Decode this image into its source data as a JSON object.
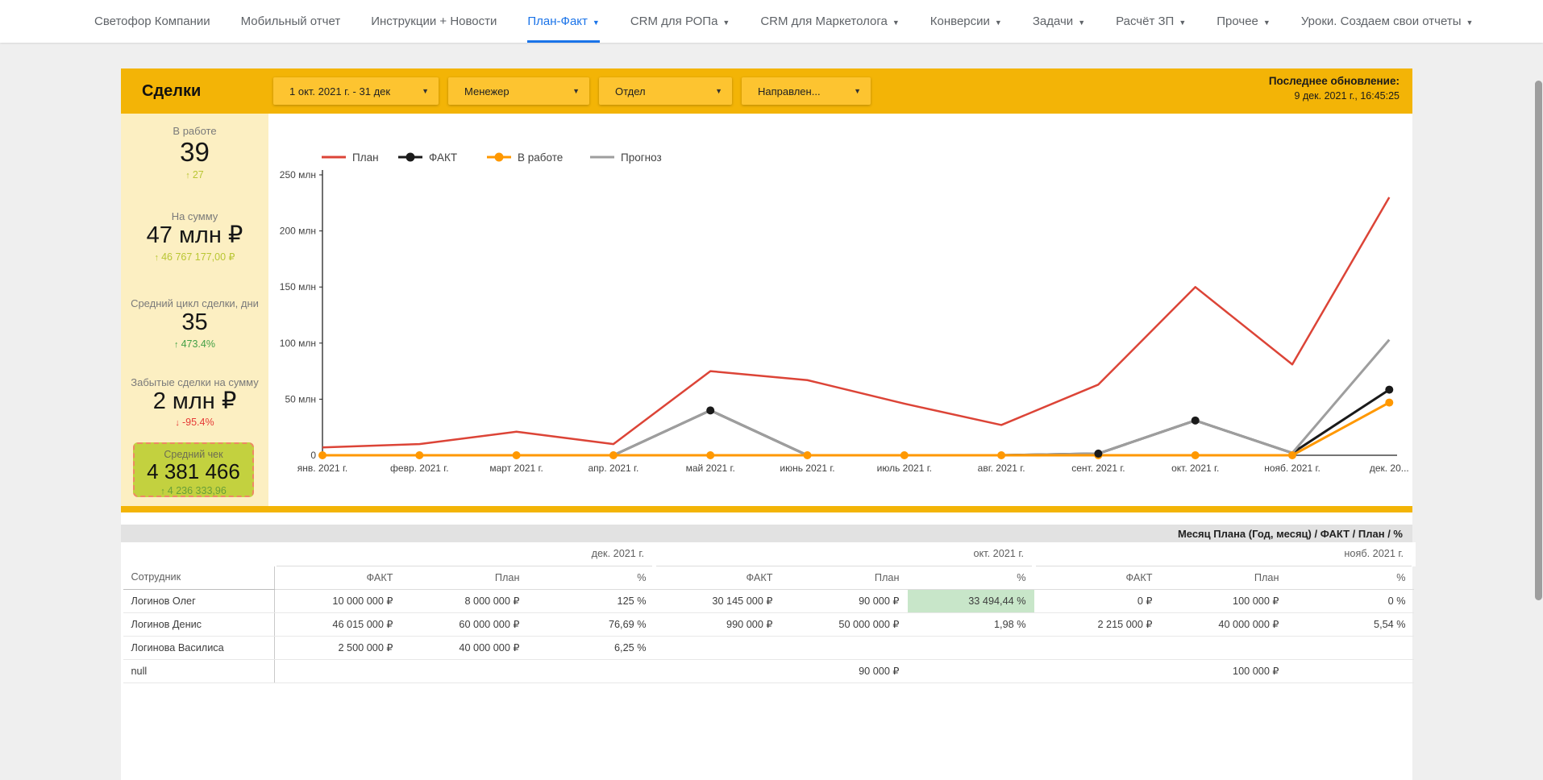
{
  "nav": {
    "items": [
      {
        "label": "Светофор Компании",
        "caret": false,
        "active": false
      },
      {
        "label": "Мобильный отчет",
        "caret": false,
        "active": false
      },
      {
        "label": "Инструкции + Новости",
        "caret": false,
        "active": false
      },
      {
        "label": "План-Факт",
        "caret": true,
        "active": true
      },
      {
        "label": "CRM для РОПа",
        "caret": true,
        "active": false
      },
      {
        "label": "CRM для Маркетолога",
        "caret": true,
        "active": false
      },
      {
        "label": "Конверсии",
        "caret": true,
        "active": false
      },
      {
        "label": "Задачи",
        "caret": true,
        "active": false
      },
      {
        "label": "Расчёт ЗП",
        "caret": true,
        "active": false
      },
      {
        "label": "Прочее",
        "caret": true,
        "active": false
      },
      {
        "label": "Уроки. Создаем свои отчеты",
        "caret": true,
        "active": false
      }
    ]
  },
  "header": {
    "title": "Сделки",
    "filters": [
      {
        "label": "1 окт. 2021 г. - 31 дек"
      },
      {
        "label": "Менежер"
      },
      {
        "label": "Отдел"
      },
      {
        "label": "Направлен..."
      }
    ],
    "last_update_label": "Последнее обновление:",
    "last_update_value": "9 дек. 2021 г., 16:45:25"
  },
  "kpis": [
    {
      "label": "В работе",
      "value": "39",
      "delta": "27",
      "direction": "up",
      "delta_color": "#b9c634"
    },
    {
      "label": "На сумму",
      "value": "47 млн ₽",
      "delta": "46 767 177,00 ₽",
      "direction": "up",
      "delta_color": "#b9c634"
    },
    {
      "label": "Средний цикл сделки, дни",
      "value": "35",
      "delta": "473.4%",
      "direction": "up",
      "delta_color": "#43a047"
    },
    {
      "label": "Забытые сделки на сумму",
      "value": "2 млн ₽",
      "delta": "-95.4%",
      "direction": "down",
      "delta_color": "#e53935"
    }
  ],
  "avg_check": {
    "label": "Средний чек",
    "value": "4 381 466",
    "delta": "4 236 333,96",
    "direction": "up"
  },
  "chart_data": {
    "type": "line",
    "title": "",
    "unit": "млн ₽",
    "x_categories": [
      "янв. 2021 г.",
      "февр. 2021 г.",
      "март 2021 г.",
      "апр. 2021 г.",
      "май 2021 г.",
      "июнь 2021 г.",
      "июль 2021 г.",
      "авг. 2021 г.",
      "сент. 2021 г.",
      "окт. 2021 г.",
      "нояб. 2021 г.",
      "дек. 20..."
    ],
    "y_ticks": [
      "250 млн",
      "200 млн",
      "150 млн",
      "100 млн",
      "50 млн",
      "0"
    ],
    "y_tick_values": [
      250,
      200,
      150,
      100,
      50,
      0
    ],
    "ylim": [
      0,
      250
    ],
    "grid": false,
    "legend_position": "top",
    "series": [
      {
        "name": "План",
        "color": "#DC4437",
        "line_width": 2.5,
        "values": [
          7,
          10,
          21,
          10,
          75,
          67,
          46,
          27,
          63,
          150,
          81,
          230
        ],
        "marker_indices": []
      },
      {
        "name": "ФАКТ",
        "color": "#1A1A1A",
        "line_width": 3,
        "values": [
          0,
          0,
          0,
          0,
          40,
          0,
          0,
          0,
          1.5,
          31,
          2,
          58.5
        ],
        "marker_indices": [
          4,
          8,
          9,
          11
        ]
      },
      {
        "name": "В работе",
        "color": "#FF9800",
        "line_width": 3,
        "values": [
          0,
          0,
          0,
          0,
          0,
          0,
          0,
          0,
          0,
          0,
          0,
          47
        ],
        "marker_indices": [
          0,
          1,
          2,
          3,
          4,
          5,
          6,
          7,
          8,
          9,
          10,
          11
        ]
      },
      {
        "name": "Прогноз",
        "color": "#9E9E9E",
        "line_width": 3,
        "values": [
          0,
          0,
          0,
          0,
          40,
          0,
          0,
          0,
          1.5,
          31,
          2,
          103
        ],
        "marker_indices": []
      }
    ]
  },
  "table": {
    "summary_header": "Месяц Плана (Год, месяц) / ФАКТ / План / %",
    "row_dimension": "Сотрудник",
    "groups": [
      {
        "label": "дек. 2021 г.",
        "columns": [
          "ФАКТ",
          "План",
          "%"
        ]
      },
      {
        "label": "окт. 2021 г.",
        "columns": [
          "ФАКТ",
          "План",
          "%"
        ]
      },
      {
        "label": "нояб. 2021 г.",
        "columns": [
          "ФАКТ",
          "План",
          "%"
        ]
      }
    ],
    "rows": [
      {
        "name": "Логинов Олег",
        "values": [
          "10 000 000 ₽",
          "8 000 000 ₽",
          "125 %",
          "30 145 000 ₽",
          "90 000 ₽",
          "33 494,44 %",
          "0 ₽",
          "100 000 ₽",
          "0 %"
        ],
        "highlight": [
          5
        ]
      },
      {
        "name": "Логинов Денис",
        "values": [
          "46 015 000 ₽",
          "60 000 000 ₽",
          "76,69 %",
          "990 000 ₽",
          "50 000 000 ₽",
          "1,98 %",
          "2 215 000 ₽",
          "40 000 000 ₽",
          "5,54 %"
        ],
        "highlight": []
      },
      {
        "name": "Логинова Василиса",
        "values": [
          "2 500 000 ₽",
          "40 000 000 ₽",
          "6,25 %",
          "",
          "",
          "",
          "",
          "",
          ""
        ],
        "highlight": []
      },
      {
        "name": "null",
        "values": [
          "",
          "",
          "",
          "",
          "90 000 ₽",
          "",
          "",
          "100 000 ₽",
          ""
        ],
        "highlight": []
      }
    ]
  },
  "colors": {
    "header_bar": "#F3B406",
    "filter_chip": "#FDC430",
    "sidebar_bg": "#FCEFC2",
    "avg_check_bg": "#C3D13F",
    "avg_check_border": "#EE8A63",
    "active_tab": "#1A73E8",
    "highlight_cell": "#C8E6C9",
    "series_plan": "#DC4437",
    "series_fact": "#1A1A1A",
    "series_inwork": "#FF9800",
    "series_forecast": "#9E9E9E"
  }
}
